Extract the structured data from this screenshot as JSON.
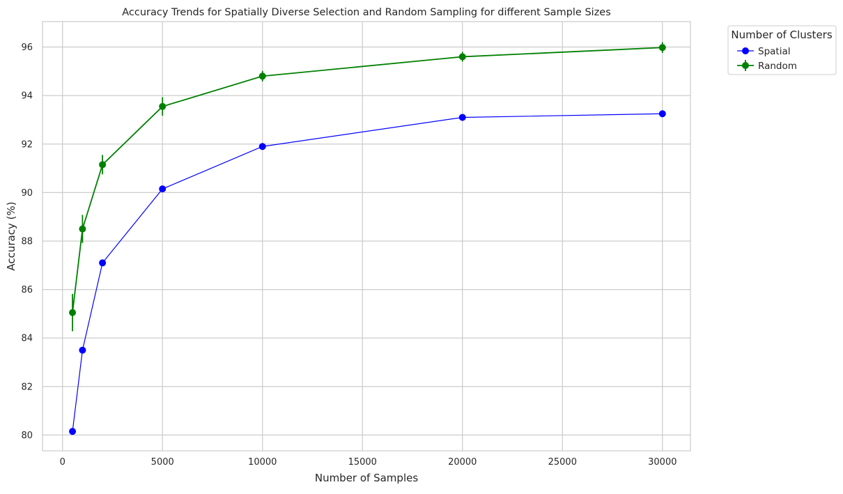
{
  "chart_data": {
    "type": "line",
    "title": "Accuracy Trends for Spatially Diverse Selection and Random Sampling for different Sample Sizes",
    "xlabel": "Number of Samples",
    "ylabel": "Accuracy (%)",
    "xlim": [
      -1000,
      31400
    ],
    "ylim": [
      79.35,
      97.05
    ],
    "xticks": [
      0,
      5000,
      10000,
      15000,
      20000,
      25000,
      30000
    ],
    "yticks": [
      80,
      82,
      84,
      86,
      88,
      90,
      92,
      94,
      96
    ],
    "grid": true,
    "legend": {
      "title": "Number of Clusters",
      "placement": "outside-top-right"
    },
    "series": [
      {
        "name": "Spatial",
        "color": "#0000ff",
        "x": [
          500,
          1000,
          2000,
          5000,
          10000,
          20000,
          30000
        ],
        "y": [
          80.15,
          83.5,
          87.1,
          90.15,
          91.9,
          93.1,
          93.25
        ]
      },
      {
        "name": "Random",
        "color": "#008000",
        "x": [
          500,
          1000,
          2000,
          5000,
          10000,
          20000,
          30000
        ],
        "y": [
          85.05,
          88.5,
          91.15,
          93.55,
          94.8,
          95.6,
          95.98
        ],
        "err": [
          0.77,
          0.58,
          0.4,
          0.38,
          0.22,
          0.2,
          0.22
        ]
      }
    ]
  }
}
